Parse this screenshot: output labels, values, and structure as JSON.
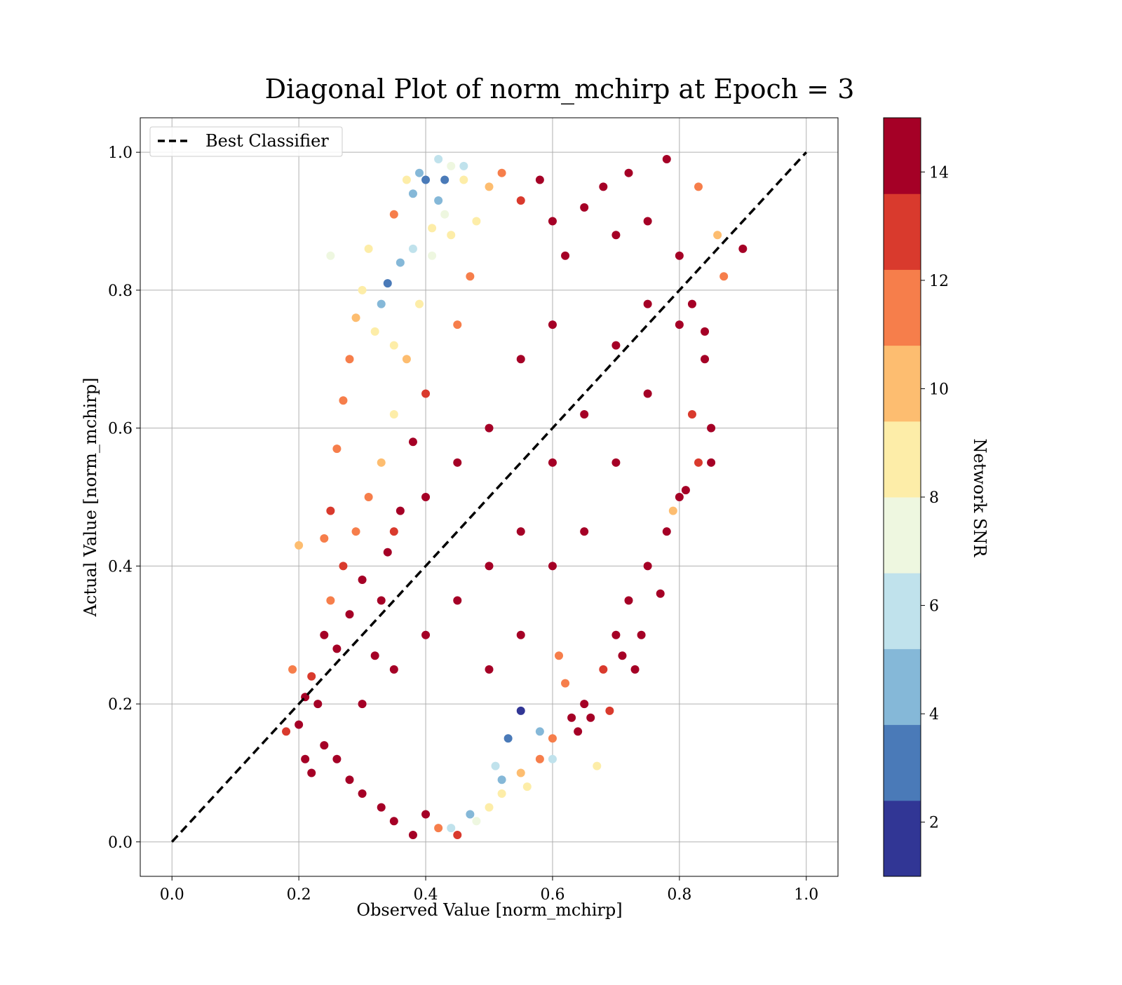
{
  "chart_data": {
    "type": "scatter",
    "title": "Diagonal Plot of norm_mchirp at Epoch = 3",
    "xlabel": "Observed Value [norm_mchirp]",
    "ylabel": "Actual Value [norm_mchirp]",
    "xlim": [
      -0.05,
      1.05
    ],
    "ylim": [
      -0.05,
      1.05
    ],
    "x_ticks": [
      0.0,
      0.2,
      0.4,
      0.6,
      0.8,
      1.0
    ],
    "y_ticks": [
      0.0,
      0.2,
      0.4,
      0.6,
      0.8,
      1.0
    ],
    "x_tick_labels": [
      "0.0",
      "0.2",
      "0.4",
      "0.6",
      "0.8",
      "1.0"
    ],
    "y_tick_labels": [
      "0.0",
      "0.2",
      "0.4",
      "0.6",
      "0.8",
      "1.0"
    ],
    "grid": true,
    "legend": {
      "placement": "top-left",
      "entries": [
        "Best Classifier"
      ]
    },
    "best_classifier_line": {
      "name": "Best Classifier",
      "x": [
        0.0,
        1.0
      ],
      "y": [
        0.0,
        1.0
      ],
      "style": "dashed",
      "color": "#000000"
    },
    "colorbar": {
      "label": "Network SNR",
      "range": [
        1,
        15
      ],
      "ticks": [
        2,
        4,
        6,
        8,
        10,
        12,
        14
      ],
      "tick_labels": [
        "2",
        "4",
        "6",
        "8",
        "10",
        "12",
        "14"
      ],
      "bands": [
        "#313695",
        "#4575b4",
        "#74add1",
        "#abd9e9",
        "#e0f3f8",
        "#ffffbf",
        "#fee090",
        "#fdae61",
        "#f46d43",
        "#d73027",
        "#a50026"
      ],
      "band_colors": [
        "#313695",
        "#4a7ab8",
        "#85b8d8",
        "#c0e2ec",
        "#eef7e0",
        "#fdeda8",
        "#fdbd70",
        "#f67e4b",
        "#d93a2d",
        "#a50026"
      ]
    },
    "points": [
      [
        0.2,
        0.17,
        14
      ],
      [
        0.21,
        0.21,
        14
      ],
      [
        0.22,
        0.24,
        13
      ],
      [
        0.23,
        0.2,
        14
      ],
      [
        0.24,
        0.3,
        14
      ],
      [
        0.25,
        0.35,
        12
      ],
      [
        0.26,
        0.28,
        14
      ],
      [
        0.27,
        0.4,
        13
      ],
      [
        0.28,
        0.33,
        14
      ],
      [
        0.29,
        0.45,
        12
      ],
      [
        0.3,
        0.38,
        14
      ],
      [
        0.31,
        0.5,
        11
      ],
      [
        0.32,
        0.27,
        14
      ],
      [
        0.33,
        0.55,
        10
      ],
      [
        0.34,
        0.42,
        14
      ],
      [
        0.35,
        0.62,
        9
      ],
      [
        0.36,
        0.48,
        14
      ],
      [
        0.37,
        0.7,
        10
      ],
      [
        0.38,
        0.58,
        14
      ],
      [
        0.39,
        0.78,
        9
      ],
      [
        0.4,
        0.65,
        13
      ],
      [
        0.41,
        0.85,
        7
      ],
      [
        0.42,
        0.93,
        5
      ],
      [
        0.43,
        0.96,
        3
      ],
      [
        0.44,
        0.88,
        8
      ],
      [
        0.45,
        0.75,
        12
      ],
      [
        0.46,
        0.98,
        6
      ],
      [
        0.47,
        0.82,
        11
      ],
      [
        0.48,
        0.9,
        9
      ],
      [
        0.5,
        0.95,
        10
      ],
      [
        0.52,
        0.97,
        12
      ],
      [
        0.55,
        0.93,
        13
      ],
      [
        0.58,
        0.96,
        14
      ],
      [
        0.6,
        0.9,
        14
      ],
      [
        0.62,
        0.85,
        14
      ],
      [
        0.65,
        0.92,
        14
      ],
      [
        0.68,
        0.95,
        14
      ],
      [
        0.7,
        0.88,
        14
      ],
      [
        0.72,
        0.97,
        14
      ],
      [
        0.75,
        0.9,
        14
      ],
      [
        0.78,
        0.99,
        14
      ],
      [
        0.8,
        0.85,
        14
      ],
      [
        0.82,
        0.78,
        14
      ],
      [
        0.84,
        0.7,
        14
      ],
      [
        0.85,
        0.6,
        14
      ],
      [
        0.83,
        0.55,
        13
      ],
      [
        0.8,
        0.5,
        14
      ],
      [
        0.78,
        0.45,
        14
      ],
      [
        0.75,
        0.4,
        14
      ],
      [
        0.72,
        0.35,
        14
      ],
      [
        0.7,
        0.3,
        14
      ],
      [
        0.68,
        0.25,
        13
      ],
      [
        0.65,
        0.2,
        14
      ],
      [
        0.63,
        0.18,
        14
      ],
      [
        0.6,
        0.15,
        12
      ],
      [
        0.58,
        0.12,
        11
      ],
      [
        0.55,
        0.1,
        10
      ],
      [
        0.52,
        0.07,
        9
      ],
      [
        0.5,
        0.05,
        8
      ],
      [
        0.48,
        0.03,
        7
      ],
      [
        0.45,
        0.01,
        13
      ],
      [
        0.42,
        0.02,
        12
      ],
      [
        0.4,
        0.04,
        14
      ],
      [
        0.38,
        0.01,
        14
      ],
      [
        0.35,
        0.03,
        14
      ],
      [
        0.33,
        0.05,
        14
      ],
      [
        0.3,
        0.07,
        14
      ],
      [
        0.28,
        0.09,
        14
      ],
      [
        0.26,
        0.12,
        14
      ],
      [
        0.24,
        0.14,
        14
      ],
      [
        0.22,
        0.1,
        14
      ],
      [
        0.21,
        0.12,
        14
      ],
      [
        0.5,
        0.4,
        14
      ],
      [
        0.55,
        0.45,
        14
      ],
      [
        0.6,
        0.55,
        14
      ],
      [
        0.65,
        0.62,
        14
      ],
      [
        0.7,
        0.72,
        14
      ],
      [
        0.75,
        0.78,
        14
      ],
      [
        0.45,
        0.35,
        14
      ],
      [
        0.4,
        0.3,
        14
      ],
      [
        0.35,
        0.25,
        14
      ],
      [
        0.3,
        0.2,
        14
      ],
      [
        0.5,
        0.25,
        14
      ],
      [
        0.55,
        0.3,
        14
      ],
      [
        0.6,
        0.4,
        14
      ],
      [
        0.65,
        0.45,
        14
      ],
      [
        0.7,
        0.55,
        14
      ],
      [
        0.75,
        0.65,
        14
      ],
      [
        0.8,
        0.75,
        14
      ],
      [
        0.45,
        0.55,
        14
      ],
      [
        0.5,
        0.6,
        14
      ],
      [
        0.55,
        0.7,
        14
      ],
      [
        0.6,
        0.75,
        14
      ],
      [
        0.4,
        0.5,
        14
      ],
      [
        0.35,
        0.45,
        13
      ],
      [
        0.33,
        0.35,
        14
      ],
      [
        0.67,
        0.11,
        9
      ],
      [
        0.6,
        0.12,
        6
      ],
      [
        0.58,
        0.16,
        5
      ],
      [
        0.55,
        0.19,
        2
      ],
      [
        0.53,
        0.15,
        3
      ],
      [
        0.52,
        0.09,
        4
      ],
      [
        0.56,
        0.08,
        8
      ],
      [
        0.51,
        0.11,
        6
      ],
      [
        0.47,
        0.04,
        5
      ],
      [
        0.44,
        0.02,
        6
      ],
      [
        0.25,
        0.85,
        7
      ],
      [
        0.2,
        0.43,
        10
      ],
      [
        0.19,
        0.25,
        12
      ],
      [
        0.18,
        0.16,
        13
      ],
      [
        0.9,
        0.86,
        14
      ],
      [
        0.87,
        0.82,
        11
      ],
      [
        0.86,
        0.88,
        10
      ],
      [
        0.85,
        0.55,
        14
      ],
      [
        0.84,
        0.74,
        14
      ],
      [
        0.83,
        0.95,
        12
      ],
      [
        0.82,
        0.62,
        13
      ],
      [
        0.81,
        0.51,
        14
      ],
      [
        0.79,
        0.48,
        10
      ],
      [
        0.77,
        0.36,
        14
      ],
      [
        0.74,
        0.3,
        14
      ],
      [
        0.73,
        0.25,
        14
      ],
      [
        0.71,
        0.27,
        14
      ],
      [
        0.69,
        0.19,
        13
      ],
      [
        0.66,
        0.18,
        14
      ],
      [
        0.64,
        0.16,
        14
      ],
      [
        0.62,
        0.23,
        12
      ],
      [
        0.61,
        0.27,
        11
      ],
      [
        0.35,
        0.91,
        11
      ],
      [
        0.37,
        0.96,
        8
      ],
      [
        0.38,
        0.94,
        5
      ],
      [
        0.39,
        0.97,
        4
      ],
      [
        0.4,
        0.96,
        3
      ],
      [
        0.42,
        0.99,
        6
      ],
      [
        0.44,
        0.98,
        7
      ],
      [
        0.46,
        0.96,
        9
      ],
      [
        0.31,
        0.86,
        8
      ],
      [
        0.3,
        0.8,
        9
      ],
      [
        0.29,
        0.76,
        10
      ],
      [
        0.28,
        0.7,
        11
      ],
      [
        0.27,
        0.64,
        12
      ],
      [
        0.26,
        0.57,
        11
      ],
      [
        0.25,
        0.48,
        13
      ],
      [
        0.24,
        0.44,
        12
      ],
      [
        0.36,
        0.84,
        4
      ],
      [
        0.38,
        0.86,
        6
      ],
      [
        0.41,
        0.89,
        8
      ],
      [
        0.43,
        0.91,
        7
      ],
      [
        0.34,
        0.81,
        3
      ],
      [
        0.33,
        0.78,
        5
      ],
      [
        0.32,
        0.74,
        8
      ],
      [
        0.35,
        0.72,
        9
      ]
    ]
  }
}
